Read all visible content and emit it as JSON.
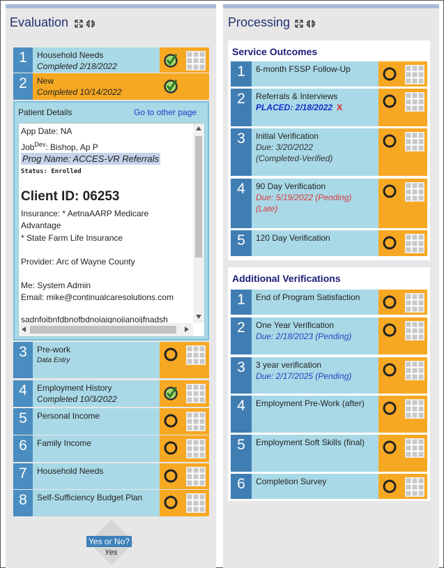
{
  "evaluation": {
    "title": "Evaluation",
    "items": [
      {
        "number": "1",
        "name": "Household Needs",
        "details": [
          {
            "text": "Completed 2/18/2022",
            "style": "date"
          }
        ],
        "icon": "check",
        "grid": true
      },
      {
        "number": "2",
        "name": "New",
        "details": [
          {
            "text": "Completed 10/14/2022",
            "style": "date"
          }
        ],
        "icon": "check",
        "grid": false,
        "selected": true
      },
      {
        "number": "3",
        "name": "Pre-work",
        "details": [
          {
            "text": "Data Entry",
            "style": "small"
          }
        ],
        "icon": "circle",
        "grid": true
      },
      {
        "number": "4",
        "name": "Employment History",
        "details": [
          {
            "text": "Completed 10/3/2022",
            "style": "date"
          }
        ],
        "icon": "check",
        "grid": true
      },
      {
        "number": "5",
        "name": "Personal Income",
        "icon": "circle",
        "grid": true
      },
      {
        "number": "6",
        "name": "Family Income",
        "icon": "circle",
        "grid": true
      },
      {
        "number": "7",
        "name": "Household Needs",
        "icon": "circle",
        "grid": true
      },
      {
        "number": "8",
        "name": "Self-Sufficiency Budget Plan",
        "icon": "circle",
        "grid": true
      }
    ],
    "patient_details": {
      "title": "Patient Details",
      "link": "Go to other page",
      "app_date": "App Date: NA",
      "job": {
        "prefix": "Job",
        "sup": "Dev",
        "text": ": Bishop, Ap P"
      },
      "prog_name": "Prog Name: ACCES-VR Referrals",
      "status": "Status: Enrolled",
      "client_id": "Client ID: 06253",
      "insurance": "Insurance: * AetnaAARP Medicare Advantage",
      "insurance_2": "* State Farm Life Insurance",
      "provider": "Provider: Arc of Wayne County",
      "me": "Me: System Admin",
      "email": "Email: mike@continualcaresolutions.com",
      "extra": "sadnfoibnfdbnofbdnoiaiqnoiianoijfnadsh"
    },
    "decision": {
      "label": "Yes or No?",
      "answer": "Yes"
    }
  },
  "processing": {
    "title": "Processing",
    "sections": [
      {
        "title": "Service Outcomes",
        "items": [
          {
            "number": "1",
            "name": "6-month FSSP Follow-Up",
            "icon": "circle",
            "grid": true
          },
          {
            "number": "2",
            "name": "Referrals & Interviews",
            "details": [
              {
                "text": "PLACED: 2/18/2022",
                "style": "placed",
                "mark": "X"
              }
            ],
            "icon": "circle",
            "grid": true
          },
          {
            "number": "3",
            "name": "Initial Verification",
            "details": [
              {
                "text": "Due: 3/20/2022",
                "style": "due"
              },
              {
                "text": "(Completed-Verified)",
                "style": "due"
              }
            ],
            "icon": "circle",
            "grid": true
          },
          {
            "number": "4",
            "name": "90 Day Verification",
            "details": [
              {
                "text": "Due: 5/19/2022 (Pending)",
                "style": "late"
              },
              {
                "text": "(Late)",
                "style": "late"
              }
            ],
            "icon": "circle",
            "grid": true
          },
          {
            "number": "5",
            "name": "120 Day Verification",
            "icon": "circle",
            "grid": true
          }
        ]
      },
      {
        "title": "Additional Verifications",
        "items": [
          {
            "number": "1",
            "name": "End of Program Satisfaction",
            "icon": "circle",
            "grid": true
          },
          {
            "number": "2",
            "name": "One Year Verification",
            "details": [
              {
                "text": "Due: 2/18/2023 (Pending)",
                "style": "pending"
              }
            ],
            "icon": "circle",
            "grid": true
          },
          {
            "number": "3",
            "name": "3 year verification",
            "details": [
              {
                "text": "Due: 2/17/2025 (Pending)",
                "style": "pending"
              }
            ],
            "icon": "circle",
            "grid": true
          },
          {
            "number": "4",
            "name": "Employment Pre-Work (after)",
            "icon": "circle",
            "grid": true
          },
          {
            "number": "5",
            "name": "Employment Soft Skills (final)",
            "icon": "circle",
            "grid": true
          },
          {
            "number": "6",
            "name": "Completion Survey",
            "icon": "circle",
            "grid": true
          }
        ]
      }
    ]
  }
}
